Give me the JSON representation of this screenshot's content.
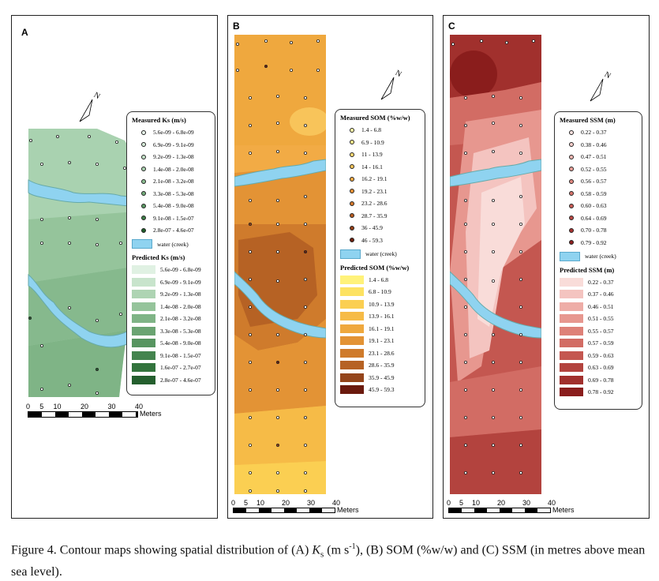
{
  "panels": {
    "A": {
      "label": "A",
      "north": "N",
      "measured_title": "Measured Ks (m/s)",
      "predicted_title": "Predicted Ks (m/s)",
      "water_label": "water (creek)",
      "measured": [
        "5.6e-09 - 6.8e-09",
        "6.9e-09 - 9.1e-09",
        "9.2e-09 - 1.3e-08",
        "1.4e-08 - 2.0e-08",
        "2.1e-08 - 3.2e-08",
        "3.3e-08 - 5.3e-08",
        "5.4e-08 - 9.0e-08",
        "9.1e-08 - 1.5e-07",
        "2.8e-07 - 4.6e-07"
      ],
      "predicted": [
        "5.6e-09 - 6.8e-09",
        "6.9e-09 - 9.1e-09",
        "9.2e-09 - 1.3e-08",
        "1.4e-08 - 2.0e-08",
        "2.1e-08 - 3.2e-08",
        "3.3e-08 - 5.3e-08",
        "5.4e-08 - 9.0e-08",
        "9.1e-08 - 1.5e-07",
        "1.6e-07 - 2.7e-07",
        "2.8e-07 - 4.6e-07"
      ],
      "measured_colors": [
        "#e8f4ea",
        "#d6ebd9",
        "#c2e0c6",
        "#a8d0ad",
        "#8cbf92",
        "#74ad7b",
        "#5c9a65",
        "#3e7f48",
        "#1f5f2a"
      ],
      "predicted_colors": [
        "#e0f1e3",
        "#c8e4cc",
        "#aed4b3",
        "#95c49b",
        "#7fb486",
        "#6aa472",
        "#579560",
        "#44844e",
        "#33743d",
        "#245f2e"
      ],
      "scale_ticks": [
        "0",
        "5",
        "10",
        "20",
        "30",
        "40"
      ],
      "scale_unit": "Meters"
    },
    "B": {
      "label": "B",
      "north": "N",
      "measured_title": "Measured SOM (%w/w)",
      "predicted_title": "Predicted SOM (%w/w)",
      "water_label": "water (creek)",
      "measured": [
        "1.4 - 6.8",
        "6.9 - 10.9",
        "11 - 13.9",
        "14 - 16.1",
        "16.2 - 19.1",
        "19.2 - 23.1",
        "23.2 - 28.6",
        "28.7 - 35.9",
        "36 - 45.9",
        "46 - 59.3"
      ],
      "predicted": [
        "1.4 - 6.8",
        "6.8 - 10.9",
        "10.9 - 13.9",
        "13.9 - 16.1",
        "16.1 - 19.1",
        "19.1 - 23.1",
        "23.1 - 28.6",
        "28.6 - 35.9",
        "35.9 - 45.9",
        "45.9 - 59.3"
      ],
      "measured_colors": [
        "#fff7a8",
        "#fde98c",
        "#fbd870",
        "#f8c45a",
        "#f2ab45",
        "#e89235",
        "#d5782a",
        "#b85c20",
        "#943e17",
        "#6e1f0e"
      ],
      "predicted_colors": [
        "#fff27a",
        "#fde262",
        "#fbcf52",
        "#f6bb47",
        "#efa83e",
        "#e39335",
        "#cf7b2c",
        "#b66224",
        "#94441a",
        "#6b1a0e"
      ],
      "scale_ticks": [
        "0",
        "5",
        "10",
        "20",
        "30",
        "40"
      ],
      "scale_unit": "Meters"
    },
    "C": {
      "label": "C",
      "north": "N",
      "measured_title": "Measured SSM (m)",
      "predicted_title": "Predicted SSM (m)",
      "water_label": "water (creek)",
      "measured": [
        "0.22 - 0.37",
        "0.38 - 0.46",
        "0.47 - 0.51",
        "0.52 - 0.55",
        "0.56 - 0.57",
        "0.58 - 0.59",
        "0.60 - 0.63",
        "0.64 - 0.69",
        "0.70 - 0.78",
        "0.79 - 0.92"
      ],
      "predicted": [
        "0.22 - 0.37",
        "0.37 - 0.46",
        "0.46 - 0.51",
        "0.51 - 0.55",
        "0.55 - 0.57",
        "0.57 - 0.59",
        "0.59 - 0.63",
        "0.63 - 0.69",
        "0.69 - 0.78",
        "0.78 - 0.92"
      ],
      "measured_colors": [
        "#fbe3e1",
        "#f7cfcc",
        "#f1b7b2",
        "#eba099",
        "#e38a82",
        "#d8746c",
        "#cb5e57",
        "#bb4944",
        "#a83432",
        "#8f1f1f"
      ],
      "predicted_colors": [
        "#f9dcd9",
        "#f4c4c0",
        "#eeada7",
        "#e7978f",
        "#de8178",
        "#d26c64",
        "#c45750",
        "#b3433e",
        "#a1302d",
        "#8a1d1c"
      ],
      "scale_ticks": [
        "0",
        "5",
        "10",
        "20",
        "30",
        "40"
      ],
      "scale_unit": "Meters"
    }
  },
  "caption": {
    "prefix": "Figure 4. Contour maps showing spatial distribution of (A) ",
    "k": "K",
    "ksub": "s",
    "mid": " (m s",
    "exp": "-1",
    "suffix": "), (B) SOM (%w/w) and (C) SSM (in metres above mean sea level)."
  }
}
